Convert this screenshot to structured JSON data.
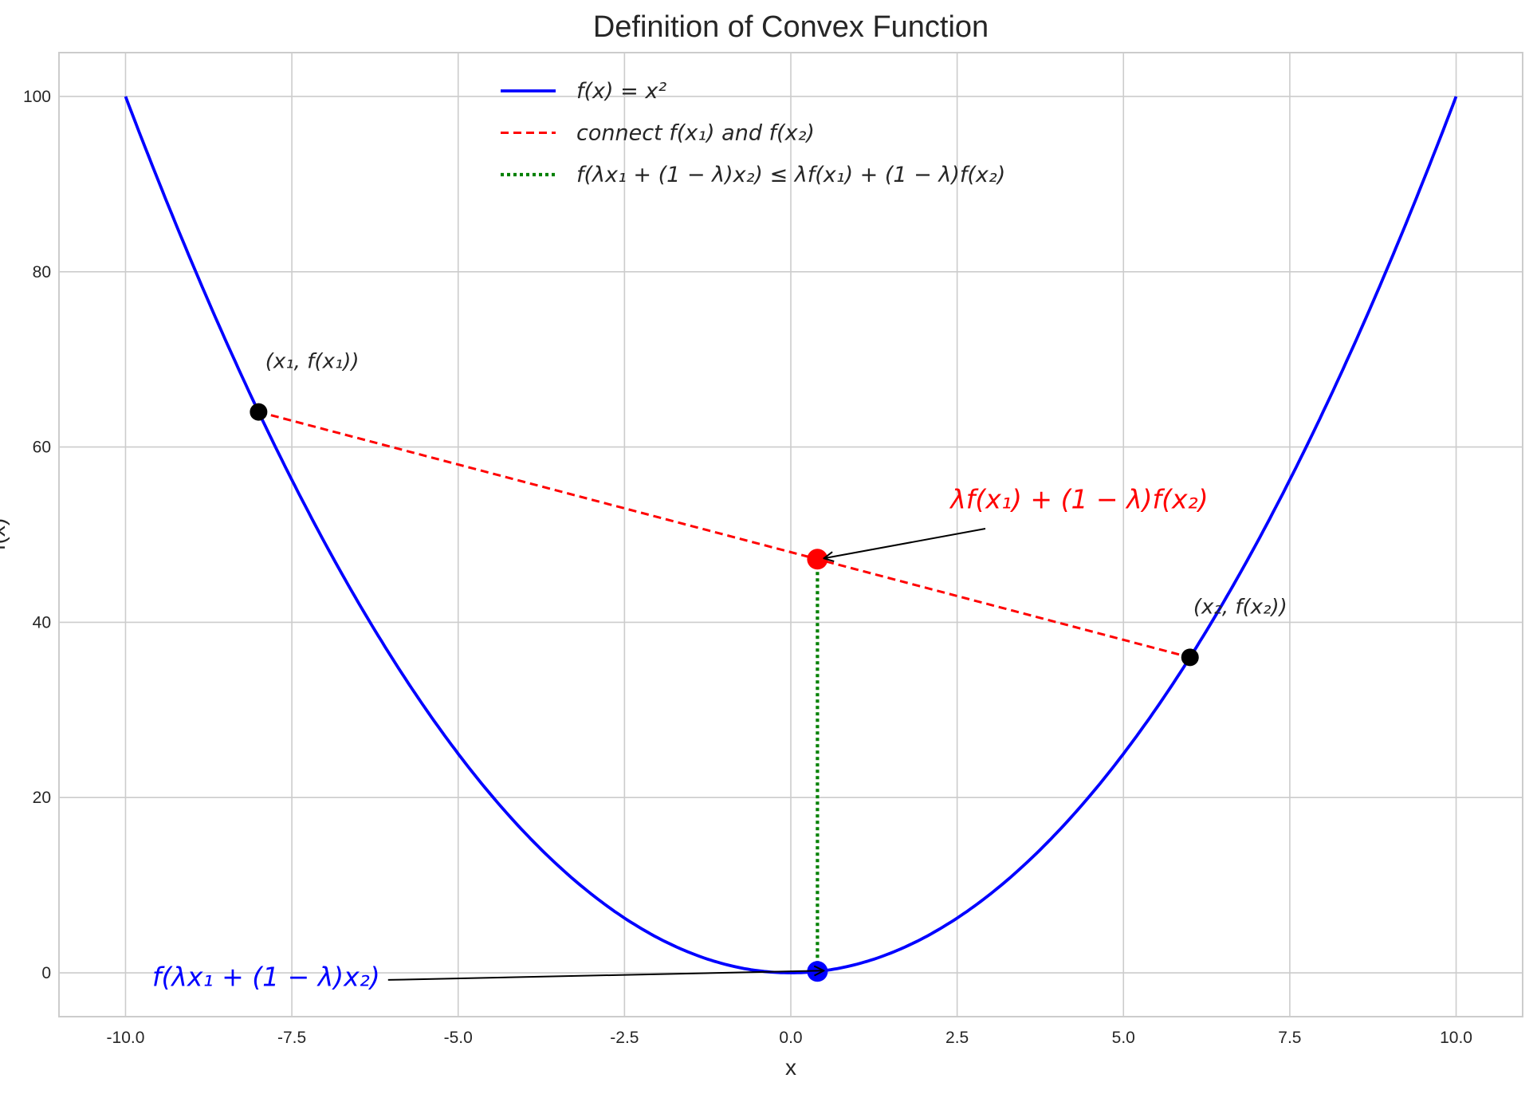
{
  "chart_data": {
    "type": "line",
    "title": "Definition of Convex Function",
    "xlabel": "x",
    "ylabel": "f(x)",
    "xlim": [
      -11,
      11
    ],
    "ylim": [
      -5,
      105
    ],
    "xticks": [
      -10,
      -7.5,
      -5,
      -2.5,
      0,
      2.5,
      5,
      7.5,
      10
    ],
    "xtick_labels": [
      "-10.0",
      "-7.5",
      "-5.0",
      "-2.5",
      "0.0",
      "2.5",
      "5.0",
      "7.5",
      "10.0"
    ],
    "yticks": [
      0,
      20,
      40,
      60,
      80,
      100
    ],
    "ytick_labels": [
      "0",
      "20",
      "40",
      "60",
      "80",
      "100"
    ],
    "grid": true,
    "legend_placement": "top-center",
    "series": [
      {
        "name": "f(x) = x²",
        "function": "x^2",
        "x_range": [
          -10,
          10
        ],
        "style": "solid",
        "color": "#0000ff"
      },
      {
        "name": "connect f(x₁) and f(x₂)",
        "x": [
          -8,
          6
        ],
        "y": [
          64,
          36
        ],
        "style": "dashed",
        "color": "#ff0000"
      },
      {
        "name": "f(λx₁ + (1 − λ)x₂) ≤ λf(x₁) + (1 − λ)f(x₂)",
        "x": [
          0.4,
          0.4
        ],
        "y": [
          47.2,
          0.16
        ],
        "style": "dotted",
        "color": "#008000"
      }
    ],
    "points": [
      {
        "x": -8,
        "y": 64,
        "color": "#000000"
      },
      {
        "x": 6,
        "y": 36,
        "color": "#000000"
      },
      {
        "x": 0.4,
        "y": 47.2,
        "color": "#ff0000"
      },
      {
        "x": 0.4,
        "y": 0.16,
        "color": "#0000ff"
      }
    ],
    "annotations": [
      {
        "text": "(x₁, f(x₁))",
        "x": -7.9,
        "y": 69,
        "color": "#262626"
      },
      {
        "text": "(x₂, f(x₂))",
        "x": 6.05,
        "y": 41,
        "color": "#262626"
      },
      {
        "text": "λf(x₁) + (1 − λ)f(x₂)",
        "x": 2.4,
        "y": 53,
        "color": "#ff0000",
        "arrow_to": [
          0.4,
          47.2
        ]
      },
      {
        "text": "f(λx₁ + (1 − λ)x₂)",
        "x": -9.6,
        "y": -1.5,
        "color": "#0000ff",
        "arrow_to": [
          0.4,
          0.16
        ]
      }
    ]
  }
}
